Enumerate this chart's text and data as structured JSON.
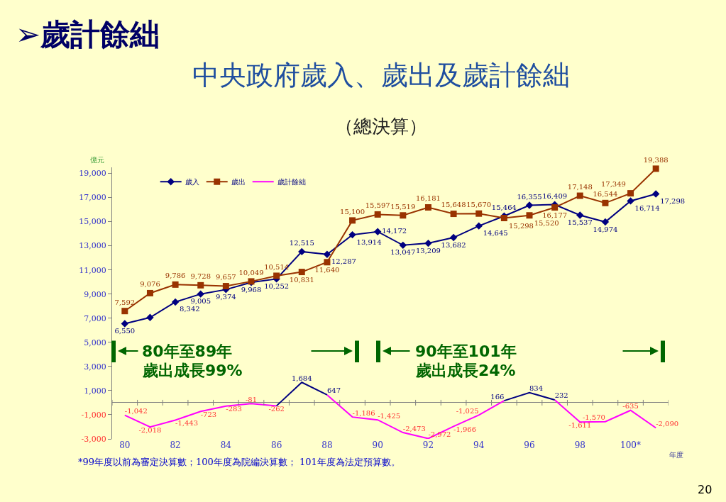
{
  "chart_data": {
    "type": "line",
    "title": "中央政府歲入、歲出及歲計餘絀",
    "subtitle": "（總決算）",
    "xlabel": "年度",
    "ylabel": "億元",
    "categories": [
      "80",
      null,
      "82",
      null,
      "84",
      null,
      "86",
      null,
      "88",
      null,
      "90",
      null,
      "92",
      null,
      "94",
      null,
      "96",
      null,
      "98",
      null,
      "100*",
      null
    ],
    "ylim": [
      -3000,
      19500
    ],
    "yticks": [
      {
        "value": -3000,
        "label": "-3,000"
      },
      {
        "value": -1000,
        "label": "-1,000"
      },
      {
        "value": 1000,
        "label": "1,000"
      },
      {
        "value": 3000,
        "label": "3,000"
      },
      {
        "value": 5000,
        "label": "5,000"
      },
      {
        "value": 7000,
        "label": "7,000"
      },
      {
        "value": 9000,
        "label": "9,000"
      },
      {
        "value": 11000,
        "label": "11,000"
      },
      {
        "value": 13000,
        "label": "13,000"
      },
      {
        "value": 15000,
        "label": "15,000"
      },
      {
        "value": 17000,
        "label": "17,000"
      },
      {
        "value": 19000,
        "label": "19,000"
      }
    ],
    "legend": "top left",
    "series": [
      {
        "name": "歲入",
        "color": "#000080",
        "marker": "diamond",
        "values": [
          6550,
          7060,
          8342,
          9005,
          9374,
          9968,
          10252,
          12515,
          12287,
          13914,
          14172,
          13047,
          13209,
          13682,
          14645,
          15464,
          16355,
          16409,
          15537,
          14974,
          16714,
          17298
        ],
        "value_labels": [
          "6,550",
          null,
          "8,342",
          "9,005",
          "9,374",
          "9,968",
          "10,252",
          "12,515",
          "12,287",
          "13,914",
          "14,172",
          "13,047",
          "13,209",
          "13,682",
          "14,645",
          "15,464",
          "16,355",
          "16,409",
          "15,537",
          "14,974",
          "16,714",
          "17,298"
        ]
      },
      {
        "name": "歲出",
        "color": "#993300",
        "marker": "square",
        "values": [
          7592,
          9076,
          9786,
          9728,
          9657,
          10049,
          10514,
          10831,
          11640,
          15100,
          15597,
          15519,
          16181,
          15648,
          15670,
          15298,
          15520,
          16177,
          17148,
          16544,
          17349,
          19388
        ],
        "value_labels": [
          "7,592",
          "9,076",
          "9,786",
          "9,728",
          "9,657",
          "10,049",
          "10,514",
          "10,831",
          "11,640",
          "15,100",
          "15,597",
          "15,519",
          "16,181",
          "15,648",
          "15,670",
          "15,298",
          "15,520",
          "16,177",
          "17,148",
          "16,544",
          "17,349",
          "19,388"
        ]
      },
      {
        "name": "歲計餘絀",
        "color": "#ff00ff",
        "marker": "none",
        "values": [
          -1042,
          -2018,
          -1443,
          -723,
          -283,
          -81,
          -262,
          null,
          647,
          -1186,
          -1425,
          -2473,
          -2972,
          -1966,
          -1025,
          166,
          null,
          232,
          -1611,
          -1570,
          -635,
          -2090
        ],
        "value_labels": [
          "-1,042",
          "-2,018",
          "-1,443",
          "-723",
          "-283",
          "-81",
          "-262",
          null,
          null,
          "-1,186",
          "-1,425",
          "-2,473",
          "-2,972",
          "-1,966",
          "-1,025",
          null,
          null,
          null,
          "-1,611",
          "-1,570",
          "-635",
          "-2,090"
        ]
      },
      {
        "color": "#000080",
        "marker": "none",
        "values": [
          null,
          null,
          null,
          null,
          null,
          null,
          -262,
          1684,
          647,
          null,
          null,
          null,
          null,
          null,
          null,
          166,
          834,
          232,
          null,
          null,
          null,
          null
        ],
        "value_labels": [
          null,
          null,
          null,
          null,
          null,
          null,
          null,
          "1,684",
          "647",
          null,
          null,
          null,
          null,
          null,
          null,
          "166",
          "834",
          "232",
          null,
          null,
          null,
          null
        ]
      }
    ],
    "annotations": [
      "➢歲計餘絀",
      "80年至89年",
      "歲出成長99%",
      "90年至101年",
      "歲出成長24%",
      "*99年度以前為審定決算數；100年度為院編決算數； 101年度為法定預算數。",
      "20"
    ]
  }
}
